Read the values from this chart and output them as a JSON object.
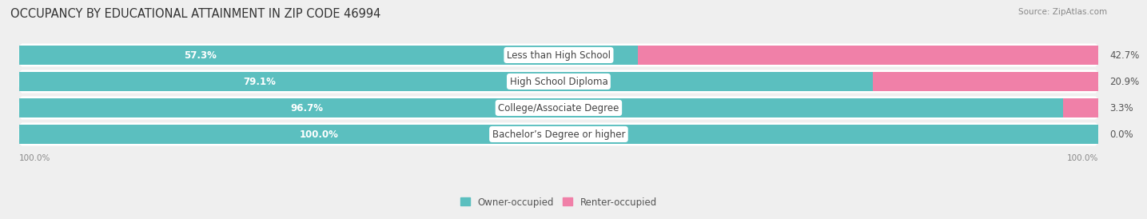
{
  "title": "OCCUPANCY BY EDUCATIONAL ATTAINMENT IN ZIP CODE 46994",
  "source": "Source: ZipAtlas.com",
  "categories": [
    "Less than High School",
    "High School Diploma",
    "College/Associate Degree",
    "Bachelor’s Degree or higher"
  ],
  "owner_pct": [
    57.3,
    79.1,
    96.7,
    100.0
  ],
  "renter_pct": [
    42.7,
    20.9,
    3.3,
    0.0
  ],
  "owner_color": "#5BBFBF",
  "renter_color": "#F080A8",
  "bg_color": "#EFEFEF",
  "bar_bg_color": "#E8E8E8",
  "row_bg_color": "#F5F5F5",
  "title_fontsize": 10.5,
  "source_fontsize": 7.5,
  "pct_fontsize": 8.5,
  "cat_fontsize": 8.5,
  "legend_fontsize": 8.5,
  "bar_height": 0.72,
  "axis_label": "100.0%"
}
